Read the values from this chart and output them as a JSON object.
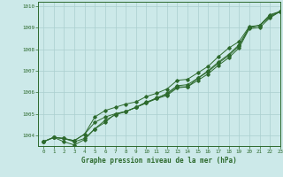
{
  "title": "",
  "xlabel": "Graphe pression niveau de la mer (hPa)",
  "xlim": [
    -0.5,
    23
  ],
  "ylim": [
    1003.5,
    1010.2
  ],
  "yticks": [
    1004,
    1005,
    1006,
    1007,
    1008,
    1009,
    1010
  ],
  "xticks": [
    0,
    1,
    2,
    3,
    4,
    5,
    6,
    7,
    8,
    9,
    10,
    11,
    12,
    13,
    14,
    15,
    16,
    17,
    18,
    19,
    20,
    21,
    22,
    23
  ],
  "background_color": "#cce9e9",
  "grid_color": "#aacfcf",
  "line_color": "#2d6a2d",
  "line1": [
    1003.7,
    1003.9,
    1003.85,
    1003.75,
    1004.05,
    1004.6,
    1004.85,
    1005.0,
    1005.1,
    1005.3,
    1005.55,
    1005.7,
    1005.95,
    1006.3,
    1006.35,
    1006.65,
    1007.0,
    1007.4,
    1007.75,
    1008.2,
    1009.0,
    1009.1,
    1009.55,
    1009.75
  ],
  "line2": [
    1003.7,
    1003.9,
    1003.85,
    1003.75,
    1004.05,
    1004.85,
    1005.15,
    1005.3,
    1005.45,
    1005.55,
    1005.8,
    1005.95,
    1006.15,
    1006.55,
    1006.6,
    1006.9,
    1007.2,
    1007.65,
    1008.05,
    1008.35,
    1009.05,
    1009.1,
    1009.6,
    1009.75
  ],
  "line3": [
    1003.7,
    1003.9,
    1003.85,
    1003.7,
    1003.85,
    1004.3,
    1004.6,
    1005.0,
    1005.1,
    1005.3,
    1005.5,
    1005.75,
    1005.9,
    1006.25,
    1006.25,
    1006.65,
    1006.95,
    1007.35,
    1007.7,
    1008.15,
    1009.0,
    1009.1,
    1009.5,
    1009.75
  ],
  "line4": [
    1003.7,
    1003.9,
    1003.7,
    1003.55,
    1003.8,
    1004.3,
    1004.7,
    1004.95,
    1005.1,
    1005.3,
    1005.5,
    1005.7,
    1005.85,
    1006.2,
    1006.25,
    1006.55,
    1006.85,
    1007.25,
    1007.6,
    1008.05,
    1008.95,
    1009.0,
    1009.45,
    1009.75
  ]
}
